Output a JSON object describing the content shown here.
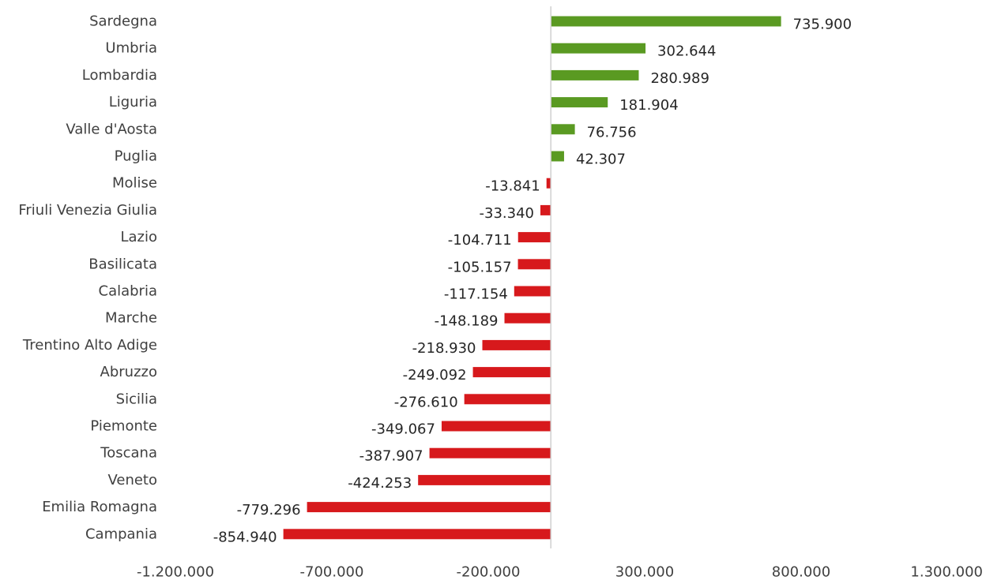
{
  "chart_data": {
    "type": "bar",
    "orientation": "horizontal",
    "categories": [
      "Sardegna",
      "Umbria",
      "Lombardia",
      "Liguria",
      "Valle d'Aosta",
      "Puglia",
      "Molise",
      "Friuli Venezia Giulia",
      "Lazio",
      "Basilicata",
      "Calabria",
      "Marche",
      "Trentino Alto Adige",
      "Abruzzo",
      "Sicilia",
      "Piemonte",
      "Toscana",
      "Veneto",
      "Emilia Romagna",
      "Campania"
    ],
    "values": [
      735900,
      302644,
      280989,
      181904,
      76756,
      42307,
      -13841,
      -33340,
      -104711,
      -105157,
      -117154,
      -148189,
      -218930,
      -249092,
      -276610,
      -349067,
      -387907,
      -424253,
      -779296,
      -854940
    ],
    "data_labels": [
      "735.900",
      "302.644",
      "280.989",
      "181.904",
      "76.756",
      "42.307",
      "-13.841",
      "-33.340",
      "-104.711",
      "-105.157",
      "-117.154",
      "-148.189",
      "-218.930",
      "-249.092",
      "-276.610",
      "-349.067",
      "-387.907",
      "-424.253",
      "-779.296",
      "-854.940"
    ],
    "x_ticks": [
      -1200000,
      -700000,
      -200000,
      300000,
      800000,
      1300000
    ],
    "x_tick_labels": [
      "-1.200.000",
      "-700.000",
      "-200.000",
      "300.000",
      "800.000",
      "1.300.000"
    ],
    "xlim": [
      -1200000,
      1300000
    ],
    "title": "",
    "xlabel": "",
    "ylabel": "",
    "grid": false,
    "colors": {
      "positive": "#5a9a22",
      "negative": "#d7191c",
      "axis": "#d0d0d0"
    }
  }
}
